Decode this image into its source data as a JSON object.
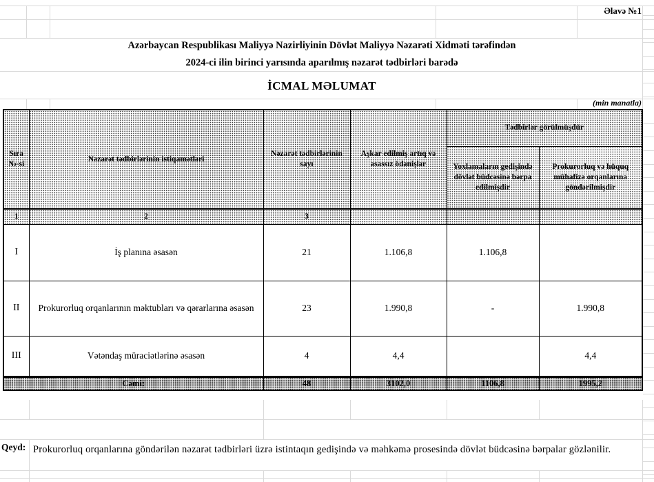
{
  "page": {
    "annex": "Əlavə №1",
    "title_line1": "Azərbaycan Respublikası Maliyyə Nazirliyinin Dövlət Maliyyə Nəzarəti Xidməti tərəfindən",
    "title_line2": "2024-ci ilin birinci yarısında aparılmış nəzarət tədbirləri barədə",
    "subtitle": "İCMAL MƏLUMAT",
    "unit_note": "(min manatla)"
  },
  "table": {
    "headers": {
      "col1": "Sıra №-si",
      "col2": "Nəzarət tədbirlərinin istiqamətləri",
      "col3": "Nəzarət tədbirlərinin sayı",
      "col4": "Aşkar edilmiş artıq və əsassız ödənişlər",
      "group": "Tədbirlər görülmüşdür",
      "col5": "Yoxlamaların gedişində dövlət büdcəsinə bərpa edilmişdir",
      "col6": "Prokurorluq və hüquq mühafizə orqanlarına göndərilmişdir"
    },
    "numbering": [
      "1",
      "2",
      "3",
      "",
      "",
      ""
    ],
    "rows": [
      {
        "no": "I",
        "direction": "İş planına əsasən",
        "count": "21",
        "found": "1.106,8",
        "restored": "1.106,8",
        "sent": ""
      },
      {
        "no": "II",
        "direction": "Prokurorluq orqanlarının məktubları və qərarlarına əsasən",
        "count": "23",
        "found": "1.990,8",
        "restored": "-",
        "sent": "1.990,8"
      },
      {
        "no": "III",
        "direction": "Vətəndaş müraciətlərinə əsasən",
        "count": "4",
        "found": "4,4",
        "restored": "",
        "sent": "4,4"
      }
    ],
    "total": {
      "label": "Cəmi:",
      "count": "48",
      "found": "3102,0",
      "restored": "1106,8",
      "sent": "1995,2"
    }
  },
  "note": {
    "label": "Qeyd:",
    "text": "Prokurorluq orqanlarına göndərilən nəzarət tədbirləri üzrə istintaqın gedişində və məhkəmə prosesində dövlət büdcəsinə bərpalar gözlənilir."
  }
}
